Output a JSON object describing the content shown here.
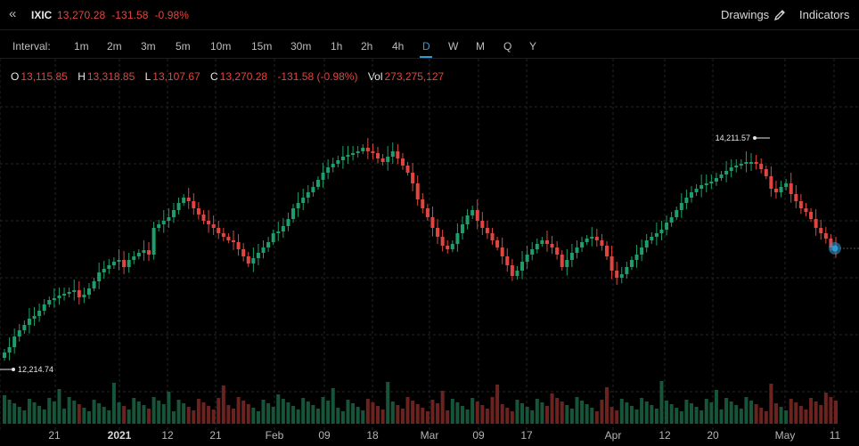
{
  "header": {
    "collapse_glyph": "«",
    "symbol": "IXIC",
    "price": "13,270.28",
    "change": "-131.58",
    "change_pct": "-0.98%",
    "drawings_label": "Drawings",
    "indicators_label": "Indicators"
  },
  "intervals": {
    "label": "Interval:",
    "items": [
      "1m",
      "2m",
      "3m",
      "5m",
      "10m",
      "15m",
      "30m",
      "1h",
      "2h",
      "4h",
      "D",
      "W",
      "M",
      "Q",
      "Y"
    ],
    "active": "D"
  },
  "ohlc": {
    "open_key": "O",
    "open": "13,115.85",
    "high_key": "H",
    "high": "13,318.85",
    "low_key": "L",
    "low": "13,107.67",
    "close_key": "C",
    "close": "13,270.28",
    "change": "-131.58 (-0.98%)",
    "vol_key": "Vol",
    "volume": "273,275,127"
  },
  "colors": {
    "up": "#1e9e6a",
    "down": "#e0463f",
    "accent": "#2f9bd6",
    "grid": "#262626",
    "volume_up": "#17553a",
    "volume_down": "#6a231f"
  },
  "chart_data": {
    "type": "candlestick",
    "symbol": "IXIC",
    "interval": "D",
    "x_tick_labels": [
      "21",
      "2021",
      "12",
      "21",
      "Feb",
      "09",
      "18",
      "Mar",
      "09",
      "17",
      "Apr",
      "12",
      "20",
      "May",
      "11"
    ],
    "price_labels": {
      "high": "14,211.57",
      "low": "12,214.74"
    },
    "grid": true,
    "last_close": 13270.28
  }
}
